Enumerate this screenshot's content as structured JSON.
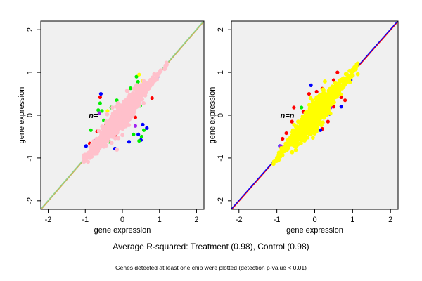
{
  "captions": {
    "main": "Average R-squared: Treatment (0.98), Control (0.98)",
    "note": "Genes detected at least one chip were plotted (detection p-value < 0.01)"
  },
  "colors": {
    "background": "#ffffff",
    "panel_background": "#f0f0f0",
    "axis": "#000000",
    "label_text": "#555555"
  },
  "chart_data": [
    {
      "type": "scatter",
      "panel_label": "Treatment",
      "overlay_text": "n=",
      "xlabel": "gene expression",
      "ylabel": "gene expression",
      "xlim": [
        -2.2,
        2.2
      ],
      "ylim": [
        -2.2,
        2.2
      ],
      "xticks": [
        -2,
        -1,
        0,
        1,
        2
      ],
      "yticks": [
        -2,
        -1,
        0,
        1,
        2
      ],
      "grid": false,
      "diagonal_lines": [
        {
          "color": "#d4a84a",
          "slope": 1,
          "intercept": 0
        },
        {
          "color": "#8fd48f",
          "slope": 1,
          "intercept": 0
        }
      ],
      "cloud": {
        "x_range": [
          -1.05,
          1.2
        ],
        "correlation": 0.98
      },
      "series": [
        {
          "color": "#ff0000",
          "points": [
            [
              0.72,
              0.65
            ],
            [
              -0.45,
              -0.25
            ],
            [
              -0.6,
              0.42
            ],
            [
              0.35,
              -0.05
            ],
            [
              -0.88,
              -0.66
            ],
            [
              0.8,
              0.4
            ],
            [
              -0.2,
              -0.47
            ],
            [
              0.55,
              0.62
            ],
            [
              -0.68,
              -0.38
            ]
          ]
        },
        {
          "color": "#0000ff",
          "points": [
            [
              0.43,
              -0.45
            ],
            [
              -0.58,
              0.5
            ],
            [
              0.55,
              -0.22
            ],
            [
              -0.2,
              -0.78
            ],
            [
              0.95,
              0.9
            ],
            [
              -0.98,
              -0.72
            ],
            [
              0.66,
              -0.3
            ],
            [
              0.18,
              -0.62
            ],
            [
              -0.45,
              -0.55
            ],
            [
              0.5,
              -0.58
            ]
          ]
        },
        {
          "color": "#00ee00",
          "points": [
            [
              -0.55,
              0.1
            ],
            [
              -0.7,
              -0.65
            ],
            [
              0.38,
              0.9
            ],
            [
              -0.3,
              0.18
            ],
            [
              0.48,
              0.22
            ],
            [
              -0.6,
              0.28
            ],
            [
              0.58,
              -0.35
            ],
            [
              -0.42,
              -0.55
            ],
            [
              0.62,
              0.73
            ],
            [
              0.3,
              -0.45
            ],
            [
              -0.85,
              -0.35
            ],
            [
              0.42,
              0.78
            ],
            [
              -0.65,
              0.12
            ],
            [
              0.52,
              -0.5
            ],
            [
              -0.15,
              0.35
            ],
            [
              0.22,
              0.63
            ],
            [
              0.45,
              -0.6
            ],
            [
              -0.35,
              -0.62
            ],
            [
              0.5,
              0.5
            ],
            [
              -0.5,
              -0.12
            ]
          ]
        },
        {
          "color": "#ffff00",
          "points": [
            [
              0.45,
              0.95
            ],
            [
              0.55,
              0.8
            ],
            [
              -0.4,
              0.1
            ]
          ]
        },
        {
          "color": "#a020f0",
          "points": [
            [
              -0.62,
              0.05
            ],
            [
              -0.75,
              -0.6
            ],
            [
              0.35,
              -0.25
            ],
            [
              -0.85,
              -0.9
            ]
          ]
        }
      ],
      "top_series": {
        "color": "#ffc0cb",
        "description": "dense main cloud"
      }
    },
    {
      "type": "scatter",
      "panel_label": "Control",
      "overlay_text": "n=n",
      "xlabel": "gene expression",
      "ylabel": "gene expression",
      "xlim": [
        -2.2,
        2.2
      ],
      "ylim": [
        -2.2,
        2.2
      ],
      "xticks": [
        -2,
        -1,
        0,
        1,
        2
      ],
      "yticks": [
        -2,
        -1,
        0,
        1,
        2
      ],
      "grid": false,
      "diagonal_lines": [
        {
          "color": "#ff0000",
          "slope": 1,
          "intercept": 0
        },
        {
          "color": "#0000ff",
          "slope": 1,
          "intercept": 0
        }
      ],
      "cloud": {
        "x_range": [
          -1.1,
          1.2
        ],
        "correlation": 0.98
      },
      "series": [
        {
          "color": "#ff0000",
          "points": [
            [
              -0.55,
              0.18
            ],
            [
              0.2,
              0.62
            ],
            [
              -0.75,
              -0.42
            ],
            [
              0.5,
              0.82
            ],
            [
              -0.3,
              0.08
            ],
            [
              0.35,
              -0.15
            ],
            [
              0.7,
              0.42
            ],
            [
              -0.15,
              0.5
            ],
            [
              0.6,
              1.0
            ],
            [
              -0.6,
              -0.15
            ],
            [
              0.2,
              -0.32
            ],
            [
              -0.85,
              -0.55
            ],
            [
              0.5,
              0.2
            ],
            [
              0.05,
              0.55
            ],
            [
              -0.4,
              -0.5
            ],
            [
              0.8,
              0.35
            ]
          ]
        },
        {
          "color": "#0000ff",
          "points": [
            [
              0.7,
              0.2
            ],
            [
              0.15,
              -0.35
            ],
            [
              -0.92,
              -0.72
            ],
            [
              0.95,
              0.82
            ],
            [
              -0.35,
              -0.55
            ],
            [
              0.4,
              0.03
            ],
            [
              -0.1,
              0.7
            ]
          ]
        },
        {
          "color": "#00ee00",
          "points": [
            [
              -0.35,
              0.18
            ]
          ]
        },
        {
          "color": "#a020f0",
          "points": [
            [
              -0.9,
              -0.72
            ],
            [
              0.42,
              0.18
            ]
          ]
        }
      ],
      "top_series": {
        "color": "#ffff00",
        "description": "dense main cloud"
      }
    }
  ]
}
